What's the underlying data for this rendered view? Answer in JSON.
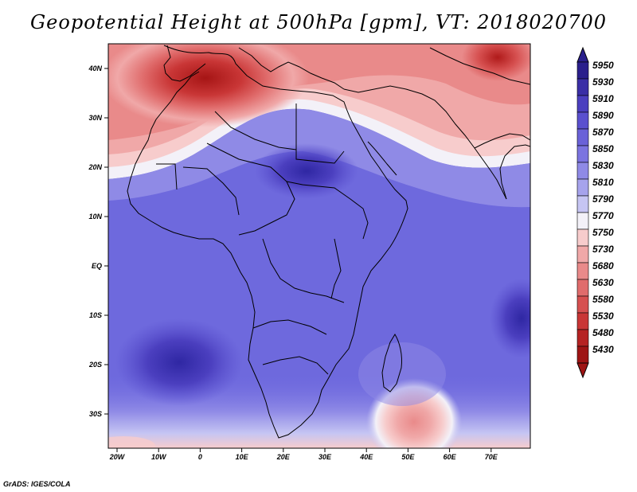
{
  "title": "Geopotential Height at 500hPa [gpm], VT: 2018020700",
  "credit": "GrADS: IGES/COLA",
  "map": {
    "x_ticks": [
      "20W",
      "10W",
      "0",
      "10E",
      "20E",
      "30E",
      "40E",
      "50E",
      "60E",
      "70E"
    ],
    "y_ticks": [
      "40N",
      "30N",
      "20N",
      "10N",
      "EQ",
      "10S",
      "20S",
      "30S"
    ]
  },
  "colorbar": {
    "levels": [
      "5950",
      "5930",
      "5910",
      "5890",
      "5870",
      "5850",
      "5830",
      "5810",
      "5790",
      "5770",
      "5750",
      "5730",
      "5680",
      "5630",
      "5580",
      "5530",
      "5480",
      "5430"
    ],
    "colors": [
      "#2a1f8c",
      "#3a2fa6",
      "#4b3fbf",
      "#5a50cf",
      "#6a62d8",
      "#7b74e0",
      "#8f8ae6",
      "#a6a3ec",
      "#c6c5f3",
      "#f3f1f8",
      "#f7cccc",
      "#f0a8a8",
      "#e98a8a",
      "#e06c6c",
      "#d65050",
      "#c93636",
      "#b52222",
      "#9e1414"
    ]
  },
  "colors": {
    "ocean_blue": "#6f6ae0",
    "deep_blue": "#3b33b5",
    "red_core": "#c02424",
    "coast": "#000000"
  }
}
